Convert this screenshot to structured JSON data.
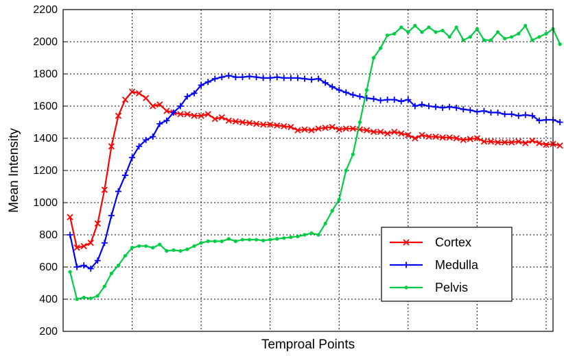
{
  "chart_data": {
    "type": "line",
    "title": "",
    "xlabel": "Temproal Points",
    "ylabel": "Mean Intensity",
    "ylim": [
      200,
      2200
    ],
    "yticks": [
      200,
      400,
      600,
      800,
      1000,
      1200,
      1400,
      1600,
      1800,
      2000,
      2200
    ],
    "xlim": [
      -1,
      70
    ],
    "xgrid": [
      9,
      19,
      29,
      39,
      49,
      59,
      69
    ],
    "x_tick_labels_shown": false,
    "grid": true,
    "legend_position": "bottom-right",
    "x": [
      0,
      1,
      2,
      3,
      4,
      5,
      6,
      7,
      8,
      9,
      10,
      11,
      12,
      13,
      14,
      15,
      16,
      17,
      18,
      19,
      20,
      21,
      22,
      23,
      24,
      25,
      26,
      27,
      28,
      29,
      30,
      31,
      32,
      33,
      34,
      35,
      36,
      37,
      38,
      39,
      40,
      41,
      42,
      43,
      44,
      45,
      46,
      47,
      48,
      49,
      50,
      51,
      52,
      53,
      54,
      55,
      56,
      57,
      58,
      59,
      60,
      61,
      62,
      63,
      64,
      65,
      66,
      67,
      68,
      69,
      70,
      71
    ],
    "series": [
      {
        "name": "Cortex",
        "color": "#ff0000",
        "marker": "x",
        "values": [
          910,
          720,
          730,
          750,
          870,
          1080,
          1350,
          1540,
          1640,
          1690,
          1680,
          1650,
          1600,
          1610,
          1570,
          1560,
          1550,
          1550,
          1540,
          1540,
          1550,
          1520,
          1530,
          1510,
          1505,
          1500,
          1495,
          1490,
          1485,
          1485,
          1480,
          1475,
          1470,
          1450,
          1455,
          1450,
          1460,
          1465,
          1470,
          1455,
          1460,
          1460,
          1455,
          1450,
          1440,
          1440,
          1430,
          1440,
          1430,
          1420,
          1400,
          1420,
          1410,
          1410,
          1405,
          1405,
          1400,
          1390,
          1395,
          1400,
          1380,
          1380,
          1375,
          1375,
          1375,
          1380,
          1370,
          1385,
          1370,
          1360,
          1365,
          1355
        ]
      },
      {
        "name": "Medulla",
        "color": "#0000ff",
        "marker": "+",
        "values": [
          800,
          600,
          610,
          590,
          640,
          750,
          920,
          1070,
          1170,
          1280,
          1350,
          1390,
          1410,
          1490,
          1510,
          1560,
          1600,
          1660,
          1680,
          1730,
          1750,
          1770,
          1780,
          1790,
          1780,
          1780,
          1785,
          1780,
          1775,
          1775,
          1780,
          1775,
          1775,
          1775,
          1770,
          1765,
          1770,
          1745,
          1720,
          1700,
          1685,
          1670,
          1660,
          1650,
          1645,
          1635,
          1640,
          1640,
          1630,
          1640,
          1600,
          1610,
          1600,
          1595,
          1590,
          1595,
          1590,
          1580,
          1575,
          1565,
          1570,
          1560,
          1560,
          1550,
          1550,
          1540,
          1545,
          1540,
          1510,
          1515,
          1515,
          1500
        ]
      },
      {
        "name": "Pelvis",
        "color": "#00cc44",
        "marker": ".",
        "values": [
          570,
          400,
          410,
          405,
          420,
          480,
          560,
          610,
          670,
          720,
          730,
          730,
          720,
          740,
          700,
          705,
          700,
          710,
          730,
          750,
          760,
          760,
          760,
          775,
          760,
          770,
          770,
          770,
          765,
          770,
          775,
          780,
          785,
          790,
          800,
          810,
          800,
          870,
          950,
          1020,
          1200,
          1300,
          1500,
          1700,
          1900,
          1960,
          2040,
          2050,
          2090,
          2060,
          2100,
          2060,
          2090,
          2060,
          2070,
          2030,
          2090,
          2010,
          2030,
          2080,
          2010,
          2010,
          2060,
          2020,
          2030,
          2050,
          2100,
          2010,
          2030,
          2050,
          2080,
          1985
        ]
      }
    ]
  }
}
